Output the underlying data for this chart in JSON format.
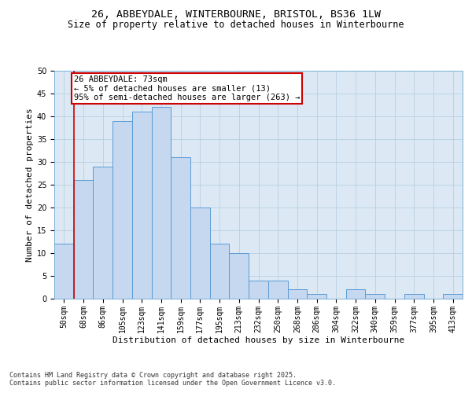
{
  "title_line1": "26, ABBEYDALE, WINTERBOURNE, BRISTOL, BS36 1LW",
  "title_line2": "Size of property relative to detached houses in Winterbourne",
  "xlabel": "Distribution of detached houses by size in Winterbourne",
  "ylabel": "Number of detached properties",
  "categories": [
    "50sqm",
    "68sqm",
    "86sqm",
    "105sqm",
    "123sqm",
    "141sqm",
    "159sqm",
    "177sqm",
    "195sqm",
    "213sqm",
    "232sqm",
    "250sqm",
    "268sqm",
    "286sqm",
    "304sqm",
    "322sqm",
    "340sqm",
    "359sqm",
    "377sqm",
    "395sqm",
    "413sqm"
  ],
  "values": [
    12,
    26,
    29,
    39,
    41,
    42,
    31,
    20,
    12,
    10,
    4,
    4,
    2,
    1,
    0,
    2,
    1,
    0,
    1,
    0,
    1
  ],
  "bar_color": "#c5d8f0",
  "bar_edge_color": "#5b9bd5",
  "annotation_text_line1": "26 ABBEYDALE: 73sqm",
  "annotation_text_line2": "← 5% of detached houses are smaller (13)",
  "annotation_text_line3": "95% of semi-detached houses are larger (263) →",
  "annotation_box_color": "#ffffff",
  "annotation_box_edge_color": "#cc0000",
  "grid_color": "#b8cfe0",
  "background_color": "#dce9f5",
  "ylim": [
    0,
    50
  ],
  "yticks": [
    0,
    5,
    10,
    15,
    20,
    25,
    30,
    35,
    40,
    45,
    50
  ],
  "footer_line1": "Contains HM Land Registry data © Crown copyright and database right 2025.",
  "footer_line2": "Contains public sector information licensed under the Open Government Licence v3.0.",
  "title_fontsize": 9.5,
  "subtitle_fontsize": 8.5,
  "axis_label_fontsize": 8,
  "tick_fontsize": 7,
  "annotation_fontsize": 7.5,
  "footer_fontsize": 6
}
